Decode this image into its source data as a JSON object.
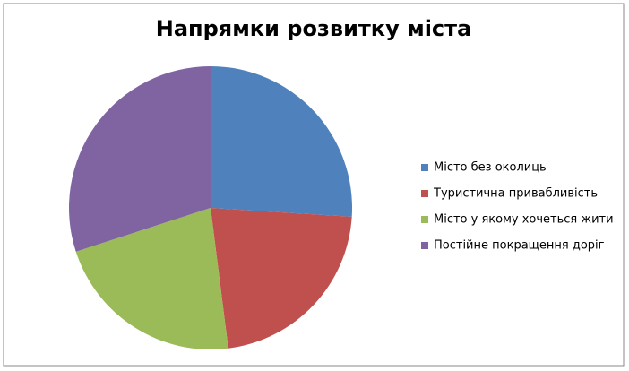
{
  "chart_data": {
    "type": "pie",
    "title": "Напрямки розвитку міста",
    "categories": [
      "Місто без околиць",
      "Туристична привабливість",
      "Місто у якому хочеться жити",
      "Постійне покращення доріг"
    ],
    "values": [
      26,
      22,
      22,
      30
    ],
    "colors": [
      "#4f81bd",
      "#c0504d",
      "#9bbb59",
      "#8064a2"
    ],
    "legend": "right"
  }
}
